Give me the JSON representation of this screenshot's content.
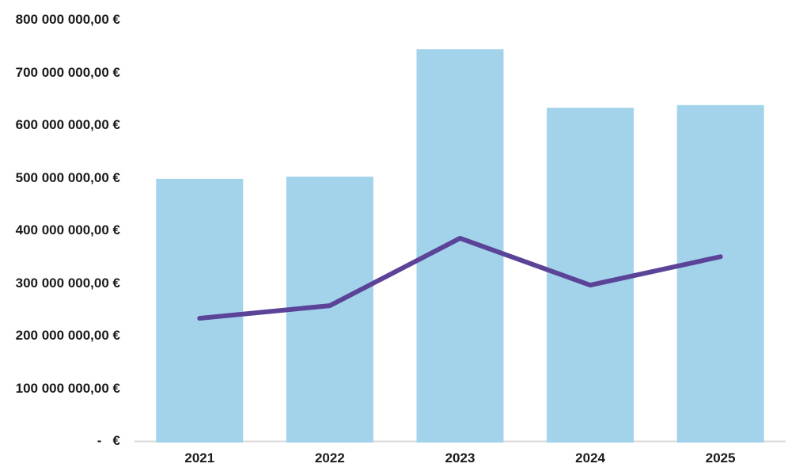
{
  "page": {
    "background_color": "#ffffff",
    "title": ""
  },
  "chart_data": {
    "type": "bar",
    "title": "",
    "subtitle": "",
    "xlabel": "",
    "ylabel": "",
    "categories": [
      "2021",
      "2022",
      "2023",
      "2024",
      "2025"
    ],
    "series": [
      {
        "name": "bar-series",
        "type": "bar",
        "color": "#A3D3EB",
        "values": [
          498000000,
          502000000,
          744000000,
          633000000,
          638000000
        ]
      },
      {
        "name": "line-series",
        "type": "line",
        "color": "#5B4397",
        "values": [
          233000000,
          257000000,
          385000000,
          296000000,
          350000000
        ]
      }
    ],
    "ylim": [
      0,
      800000000
    ],
    "ytick_step": 100000000,
    "yticks": [
      {
        "value": 800000000,
        "label": "800 000 000,00 €"
      },
      {
        "value": 700000000,
        "label": "700 000 000,00 €"
      },
      {
        "value": 600000000,
        "label": "600 000 000,00 €"
      },
      {
        "value": 500000000,
        "label": "500 000 000,00 €"
      },
      {
        "value": 400000000,
        "label": "400 000 000,00 €"
      },
      {
        "value": 300000000,
        "label": "300 000 000,00 €"
      },
      {
        "value": 200000000,
        "label": "200 000 000,00 €"
      },
      {
        "value": 100000000,
        "label": "100 000 000,00 €"
      },
      {
        "value": 0,
        "label": "-   €"
      }
    ],
    "grid": false,
    "legend": false,
    "axis_line_color": "#D9D9D9",
    "tick_text_color": "#1a1a1a"
  }
}
